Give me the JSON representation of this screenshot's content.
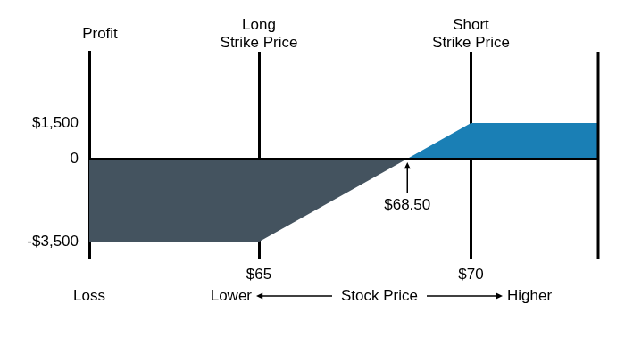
{
  "chart_data": {
    "type": "area",
    "y_label": {
      "top": "Profit",
      "bottom": "Loss"
    },
    "x_label": {
      "left": "Lower",
      "center": "Stock Price",
      "right": "Higher"
    },
    "x": [
      61,
      65,
      68.5,
      70,
      73
    ],
    "series": [
      {
        "color": "#44535f",
        "values": [
          -3500,
          -3500,
          0,
          null,
          null
        ]
      },
      {
        "color": "#1a7fb5",
        "values": [
          null,
          null,
          0,
          1500,
          1500
        ]
      }
    ],
    "xlim": [
      61,
      73
    ],
    "xticks": [
      {
        "value": 65,
        "label": "$65"
      },
      {
        "value": 70,
        "label": "$70"
      }
    ],
    "ylim": [
      -4200,
      4500
    ],
    "yticks": [
      {
        "value": -3500,
        "label": "-$3,500"
      },
      0,
      {
        "value": 1500,
        "label": "$1,500"
      }
    ],
    "strike_labels": [
      {
        "text": [
          "Long",
          "Strike Price"
        ],
        "x": 65
      },
      {
        "text": [
          "Short",
          "Strike Price"
        ],
        "x": 70
      }
    ],
    "annotations": [
      {
        "text": "$68.50",
        "x": 68.5,
        "y": 0
      }
    ],
    "grid": "x"
  }
}
